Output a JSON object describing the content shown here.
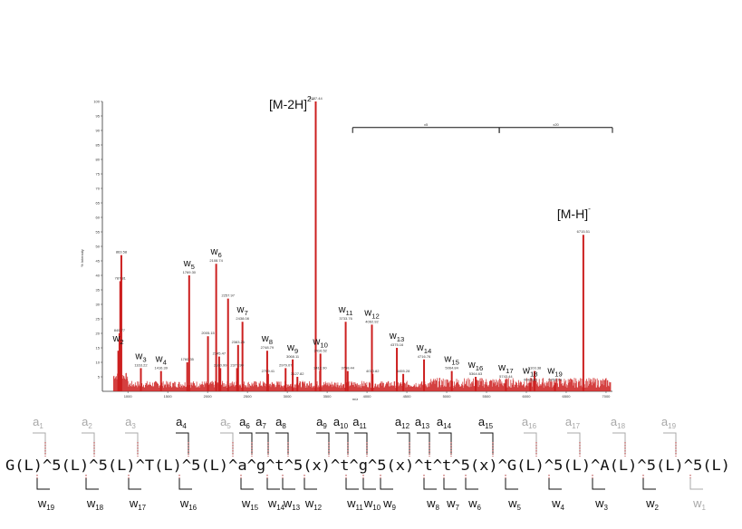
{
  "chart_data": {
    "type": "bar",
    "xlabel": "m/z",
    "ylabel": "% Intensity",
    "xlim": [
      680,
      7080
    ],
    "ylim": [
      0,
      100
    ],
    "x_ticks": [
      "1000",
      "1500",
      "2000",
      "2500",
      "3000",
      "3500",
      "4000",
      "4500",
      "5000",
      "5500",
      "6000",
      "6500",
      "7000"
    ],
    "y_ticks": [
      "5",
      "10",
      "15",
      "20",
      "25",
      "30",
      "35",
      "40",
      "45",
      "50",
      "55",
      "60",
      "65",
      "70",
      "75",
      "80",
      "85",
      "90",
      "95",
      "100"
    ],
    "bracket_labels": [
      {
        "label": "x5",
        "x_start": 3820,
        "x_end": 5660
      },
      {
        "label": "x20",
        "x_start": 5660,
        "x_end": 7080
      }
    ],
    "labeled_peaks": [
      {
        "label": "[M-2H]",
        "charge": "2-",
        "mz": "3357.44",
        "x": 3357,
        "y": 100
      },
      {
        "label": "[M-H]",
        "charge": "-",
        "mz": "6715.51",
        "x": 6715,
        "y": 54
      },
      {
        "label": "w",
        "sub": "2",
        "mz": "",
        "x": 880,
        "y": 14
      },
      {
        "label": "",
        "sub": "",
        "mz": "863.58",
        "x": 918,
        "y": 47
      },
      {
        "label": "",
        "sub": "",
        "mz": "787.81",
        "x": 905,
        "y": 38
      },
      {
        "label": "",
        "sub": "",
        "mz": "849.77",
        "x": 895,
        "y": 20
      },
      {
        "label": "w",
        "sub": "3",
        "mz": "1163.22",
        "x": 1163,
        "y": 8
      },
      {
        "label": "w",
        "sub": "4",
        "mz": "1416.39",
        "x": 1416,
        "y": 7
      },
      {
        "label": "w",
        "sub": "5",
        "mz": "1769.30",
        "x": 1769,
        "y": 40
      },
      {
        "label": "",
        "sub": "",
        "mz": "1760.35",
        "x": 1745,
        "y": 10
      },
      {
        "label": "",
        "sub": "",
        "mz": "2005.15",
        "x": 2005,
        "y": 19
      },
      {
        "label": "w",
        "sub": "6",
        "mz": "2108.74",
        "x": 2108,
        "y": 44
      },
      {
        "label": "",
        "sub": "",
        "mz": "2257.97",
        "x": 2257,
        "y": 32
      },
      {
        "label": "",
        "sub": "",
        "mz": "2145.47",
        "x": 2145,
        "y": 12
      },
      {
        "label": "",
        "sub": "",
        "mz": "2160.99",
        "x": 2160,
        "y": 8
      },
      {
        "label": "w",
        "sub": "7",
        "mz": "2438.08",
        "x": 2438,
        "y": 24
      },
      {
        "label": "",
        "sub": "",
        "mz": "2383.26",
        "x": 2383,
        "y": 16
      },
      {
        "label": "",
        "sub": "",
        "mz": "2377.99",
        "x": 2370,
        "y": 8
      },
      {
        "label": "w",
        "sub": "8",
        "mz": "2748.79",
        "x": 2748,
        "y": 14
      },
      {
        "label": "",
        "sub": "",
        "mz": "2759.41",
        "x": 2759,
        "y": 6
      },
      {
        "label": "w",
        "sub": "9",
        "mz": "3068.11",
        "x": 3068,
        "y": 11
      },
      {
        "label": "",
        "sub": "",
        "mz": "2979.07",
        "x": 2979,
        "y": 8
      },
      {
        "label": "",
        "sub": "",
        "mz": "3127.82",
        "x": 3127,
        "y": 5
      },
      {
        "label": "w",
        "sub": "10",
        "mz": "3416.52",
        "x": 3416,
        "y": 13
      },
      {
        "label": "",
        "sub": "",
        "mz": "3412.90",
        "x": 3412,
        "y": 7
      },
      {
        "label": "w",
        "sub": "11",
        "mz": "3733.76",
        "x": 3733,
        "y": 24
      },
      {
        "label": "",
        "sub": "",
        "mz": "3758.44",
        "x": 3758,
        "y": 7
      },
      {
        "label": "w",
        "sub": "12",
        "mz": "4062.92",
        "x": 4062,
        "y": 23
      },
      {
        "label": "",
        "sub": "",
        "mz": "4070.82",
        "x": 4070,
        "y": 6
      },
      {
        "label": "w",
        "sub": "13",
        "mz": "4375.16",
        "x": 4375,
        "y": 15
      },
      {
        "label": "",
        "sub": "",
        "mz": "4455.28",
        "x": 4455,
        "y": 6
      },
      {
        "label": "w",
        "sub": "14",
        "mz": "4716.76",
        "x": 4716,
        "y": 11
      },
      {
        "label": "w",
        "sub": "15",
        "mz": "5064.84",
        "x": 5064,
        "y": 7
      },
      {
        "label": "w",
        "sub": "16",
        "mz": "5364.63",
        "x": 5364,
        "y": 5
      },
      {
        "label": "w",
        "sub": "17",
        "mz": "5743.44",
        "x": 5743,
        "y": 4
      },
      {
        "label": "w",
        "sub": "18",
        "mz": "6049.86",
        "x": 6049,
        "y": 3
      },
      {
        "label": "",
        "sub": "",
        "mz": "6103.38",
        "x": 6103,
        "y": 7
      },
      {
        "label": "w",
        "sub": "19",
        "mz": "6359.74",
        "x": 6359,
        "y": 3
      }
    ]
  },
  "sequence": {
    "text": "G(L)^5(L)^5(L)^T(L)^5(L)^a^g^t^5(x)^t^g^5(x)^t^t^5(x)^G(L)^5(L)^A(L)^5(L)^5(L)",
    "a_ions": [
      {
        "n": "1",
        "gray": true
      },
      {
        "n": "2",
        "gray": true
      },
      {
        "n": "3",
        "gray": true
      },
      {
        "n": "4",
        "gray": false
      },
      {
        "n": "5",
        "gray": true
      },
      {
        "n": "6",
        "gray": false
      },
      {
        "n": "7",
        "gray": false
      },
      {
        "n": "8",
        "gray": false
      },
      {
        "n": "9",
        "gray": false
      },
      {
        "n": "10",
        "gray": false
      },
      {
        "n": "11",
        "gray": false
      },
      {
        "n": "12",
        "gray": false
      },
      {
        "n": "13",
        "gray": false
      },
      {
        "n": "14",
        "gray": false
      },
      {
        "n": "15",
        "gray": false
      },
      {
        "n": "16",
        "gray": true
      },
      {
        "n": "17",
        "gray": true
      },
      {
        "n": "18",
        "gray": true
      },
      {
        "n": "19",
        "gray": true
      }
    ],
    "w_ions": [
      {
        "n": "19",
        "gray": false
      },
      {
        "n": "18",
        "gray": false
      },
      {
        "n": "17",
        "gray": false
      },
      {
        "n": "16",
        "gray": false
      },
      {
        "n": "15",
        "gray": false
      },
      {
        "n": "14",
        "gray": false
      },
      {
        "n": "13",
        "gray": false
      },
      {
        "n": "12",
        "gray": false
      },
      {
        "n": "11",
        "gray": false
      },
      {
        "n": "10",
        "gray": false
      },
      {
        "n": "9",
        "gray": false
      },
      {
        "n": "8",
        "gray": false
      },
      {
        "n": "7",
        "gray": false
      },
      {
        "n": "6",
        "gray": false
      },
      {
        "n": "5",
        "gray": false
      },
      {
        "n": "4",
        "gray": false
      },
      {
        "n": "3",
        "gray": false
      },
      {
        "n": "2",
        "gray": false
      },
      {
        "n": "1",
        "gray": true
      }
    ],
    "a_letter": "a",
    "w_letter": "w"
  },
  "colors": {
    "spectrum": "#cc1f1f",
    "marker_dots": "#b03030",
    "gray_label": "#a8a8a8",
    "black_label": "#111111"
  }
}
